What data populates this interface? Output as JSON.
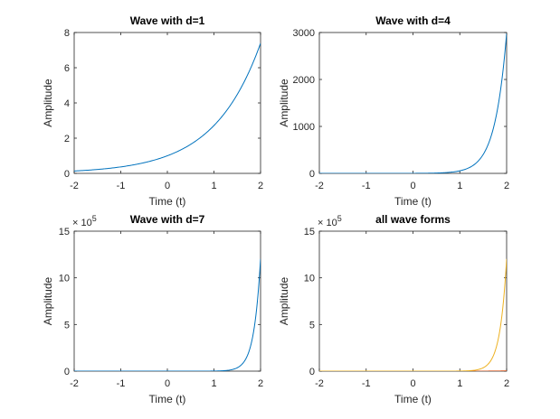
{
  "chart_data": [
    {
      "type": "line",
      "title": "Wave with d=1",
      "xlabel": "Time (t)",
      "ylabel": "Amplitude",
      "xlim": [
        -2,
        2
      ],
      "ylim": [
        0,
        8
      ],
      "x_ticks": [
        "-2",
        "-1",
        "0",
        "1",
        "2"
      ],
      "y_ticks": [
        "0",
        "2",
        "4",
        "6",
        "8"
      ],
      "exponent_label": "",
      "grid": false,
      "series": [
        {
          "color": "#0072BD",
          "function": "exp(t)",
          "x": [
            -2,
            -1.5,
            -1,
            -0.5,
            0,
            0.5,
            1,
            1.5,
            2
          ],
          "y": [
            0.135,
            0.223,
            0.368,
            0.607,
            1,
            1.649,
            2.718,
            4.482,
            7.389
          ]
        }
      ]
    },
    {
      "type": "line",
      "title": "Wave with d=4",
      "xlabel": "Time (t)",
      "ylabel": "Amplitude",
      "xlim": [
        -2,
        2
      ],
      "ylim": [
        0,
        3000
      ],
      "x_ticks": [
        "-2",
        "-1",
        "0",
        "1",
        "2"
      ],
      "y_ticks": [
        "0",
        "1000",
        "2000",
        "3000"
      ],
      "exponent_label": "",
      "grid": false,
      "series": [
        {
          "color": "#0072BD",
          "function": "exp(4t)",
          "x": [
            -2,
            -1,
            0,
            0.5,
            1,
            1.5,
            1.75,
            2
          ],
          "y": [
            0.0003,
            0.018,
            1,
            7.39,
            54.6,
            403.4,
            1096.6,
            2981
          ]
        }
      ]
    },
    {
      "type": "line",
      "title": "Wave with d=7",
      "xlabel": "Time (t)",
      "ylabel": "Amplitude",
      "xlim": [
        -2,
        2
      ],
      "ylim": [
        0,
        1500000
      ],
      "x_ticks": [
        "-2",
        "-1",
        "0",
        "1",
        "2"
      ],
      "y_ticks": [
        "0",
        "5",
        "10",
        "15"
      ],
      "exponent_label": "× 10",
      "exponent_power": "5",
      "grid": false,
      "series": [
        {
          "color": "#0072BD",
          "function": "exp(7t)",
          "x": [
            -2,
            -1,
            0,
            1,
            1.5,
            1.75,
            2
          ],
          "y": [
            8e-07,
            0.0009,
            1,
            1096.6,
            36315,
            208981,
            1202604
          ]
        }
      ]
    },
    {
      "type": "line",
      "title": "all wave forms",
      "xlabel": "Time (t)",
      "ylabel": "Amplitude",
      "xlim": [
        -2,
        2
      ],
      "ylim": [
        0,
        1500000
      ],
      "x_ticks": [
        "-2",
        "-1",
        "0",
        "1",
        "2"
      ],
      "y_ticks": [
        "0",
        "5",
        "10",
        "15"
      ],
      "exponent_label": "× 10",
      "exponent_power": "5",
      "grid": false,
      "series": [
        {
          "color": "#0072BD",
          "function": "exp(t)",
          "x": [
            -2,
            0,
            2
          ],
          "y": [
            0.135,
            1,
            7.389
          ]
        },
        {
          "color": "#D95319",
          "function": "exp(4t)",
          "x": [
            -2,
            0,
            1,
            2
          ],
          "y": [
            0.0003,
            1,
            54.6,
            2981
          ]
        },
        {
          "color": "#EDB120",
          "function": "exp(7t)",
          "x": [
            -2,
            -1,
            0,
            1,
            1.5,
            1.75,
            2
          ],
          "y": [
            8e-07,
            0.0009,
            1,
            1096.6,
            36315,
            208981,
            1202604
          ]
        }
      ]
    }
  ]
}
